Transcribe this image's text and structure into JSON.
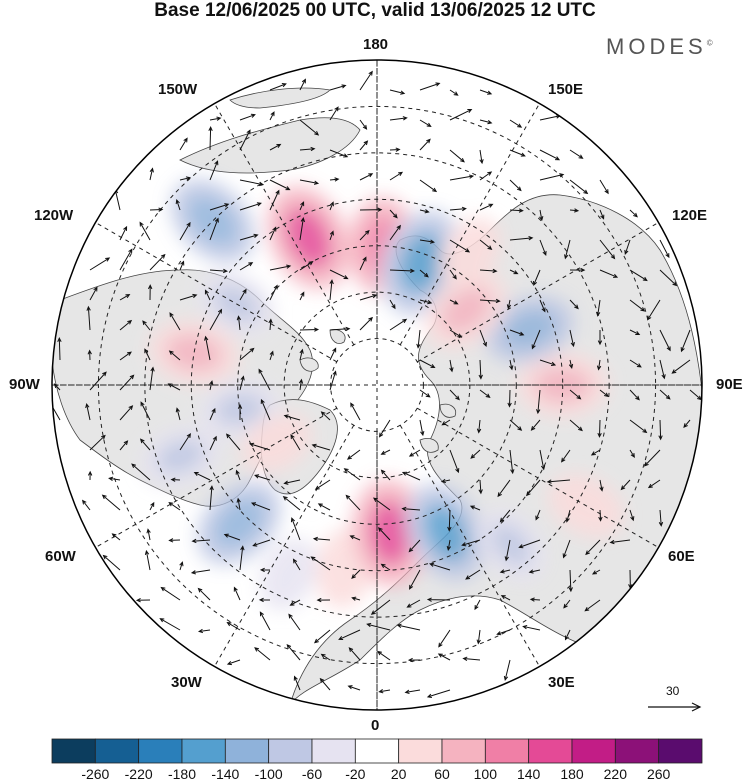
{
  "title": "Base 12/06/2025 00 UTC, valid 13/06/2025 12 UTC",
  "brand": "MODES",
  "brand_mark": "©",
  "longitude_labels": {
    "top": "180",
    "bottom": "0",
    "left": "90W",
    "right": "90E",
    "tl1": "150W",
    "tl2": "120W",
    "tr1": "150E",
    "tr2": "120E",
    "bl1": "60W",
    "bl2": "30W",
    "br1": "60E",
    "br2": "30E"
  },
  "reference_vector": {
    "label": "30"
  },
  "colorbar": {
    "labels": [
      "-260",
      "-220",
      "-180",
      "-140",
      "-100",
      "-60",
      "-20",
      "20",
      "60",
      "100",
      "140",
      "180",
      "220",
      "260"
    ],
    "colors": [
      "#0c3d5e",
      "#155f93",
      "#2a7fba",
      "#549fcf",
      "#8fb2da",
      "#bfc8e4",
      "#e6e3f1",
      "#ffffff",
      "#fbdcdc",
      "#f5b3c0",
      "#f07fa6",
      "#e44a96",
      "#c21d86",
      "#8c1178",
      "#5a0c6e"
    ]
  },
  "map": {
    "land_color": "#e8e8e8",
    "ocean_color": "#ffffff",
    "anomalies": [
      {
        "lon": 178,
        "lat": 60,
        "value": 120
      },
      {
        "lon": 160,
        "lat": 62,
        "value": -160
      },
      {
        "lon": -155,
        "lat": 55,
        "value": 160
      },
      {
        "lon": -135,
        "lat": 40,
        "value": -120
      },
      {
        "lon": -120,
        "lat": 55,
        "value": -60
      },
      {
        "lon": -100,
        "lat": 50,
        "value": 100
      },
      {
        "lon": -80,
        "lat": 60,
        "value": -60
      },
      {
        "lon": -70,
        "lat": 45,
        "value": -60
      },
      {
        "lon": -45,
        "lat": 48,
        "value": -120
      },
      {
        "lon": -25,
        "lat": 45,
        "value": -40
      },
      {
        "lon": -10,
        "lat": 50,
        "value": 60
      },
      {
        "lon": 5,
        "lat": 58,
        "value": 160
      },
      {
        "lon": 25,
        "lat": 55,
        "value": -140
      },
      {
        "lon": 40,
        "lat": 45,
        "value": -60
      },
      {
        "lon": 60,
        "lat": 38,
        "value": 60
      },
      {
        "lon": 90,
        "lat": 50,
        "value": 100
      },
      {
        "lon": 110,
        "lat": 55,
        "value": -100
      },
      {
        "lon": 130,
        "lat": 65,
        "value": 100
      },
      {
        "lon": 145,
        "lat": 55,
        "value": 40
      },
      {
        "lon": -60,
        "lat": 65,
        "value": 40
      }
    ]
  }
}
